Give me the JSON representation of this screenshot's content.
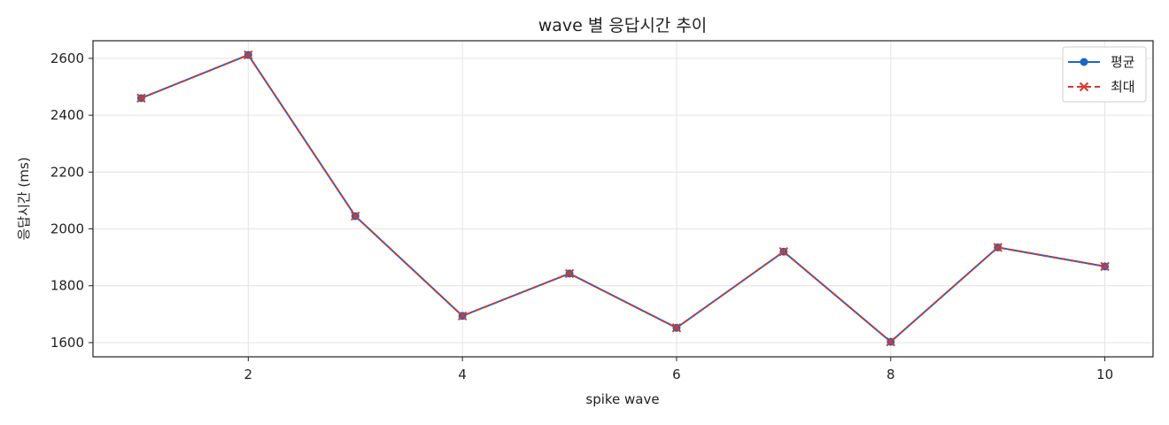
{
  "chart_data": {
    "type": "line",
    "title": "wave 별 응답시간 추이",
    "xlabel": "spike wave",
    "ylabel": "응답시간 (ms)",
    "x": [
      1,
      2,
      3,
      4,
      5,
      6,
      7,
      8,
      9,
      10
    ],
    "xlim": [
      0.55,
      10.45
    ],
    "ylim": [
      1550,
      2662
    ],
    "xticks": [
      2,
      4,
      6,
      8,
      10
    ],
    "yticks": [
      1600,
      1800,
      2000,
      2200,
      2400,
      2600
    ],
    "grid": true,
    "legend_position": "top-right",
    "series": [
      {
        "name": "평균",
        "values": [
          2460,
          2612,
          2045,
          1694,
          1843,
          1652,
          1920,
          1603,
          1935,
          1868
        ],
        "color": "#1f66c4",
        "marker": "circle",
        "line_style": "solid"
      },
      {
        "name": "최대",
        "values": [
          2460,
          2612,
          2045,
          1694,
          1843,
          1652,
          1920,
          1603,
          1935,
          1868
        ],
        "color": "#d13a2f",
        "marker": "x",
        "line_style": "dashed"
      }
    ]
  }
}
